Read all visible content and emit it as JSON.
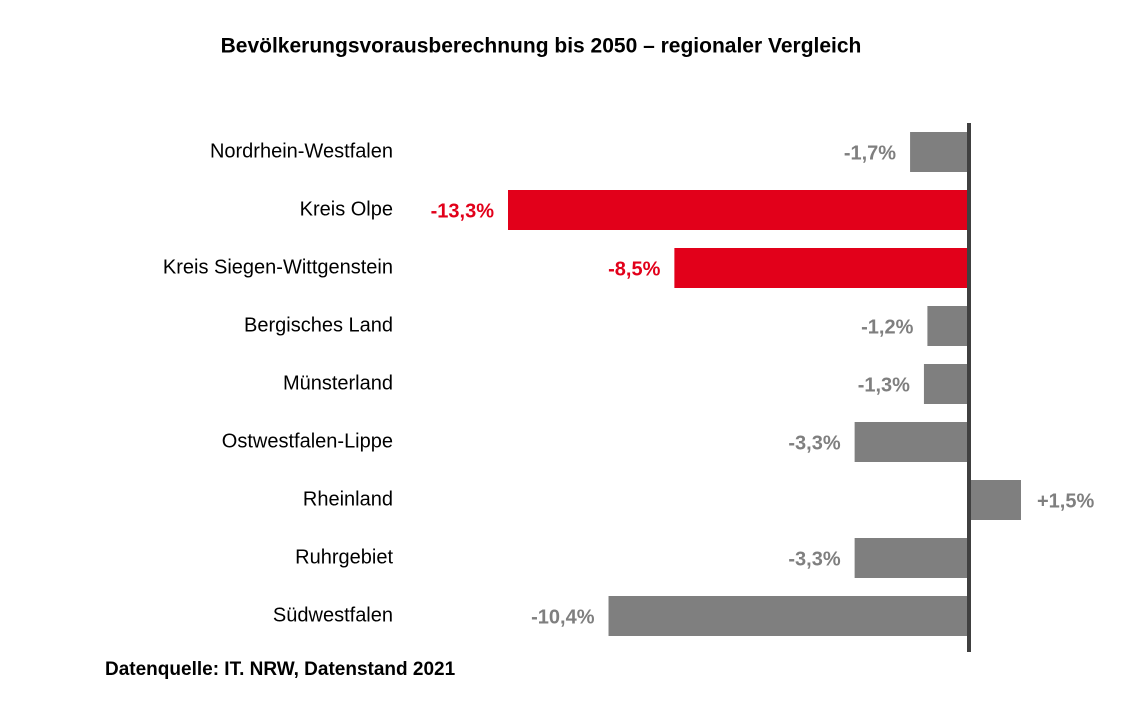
{
  "chart_data": {
    "type": "hbar",
    "title": "Bevölkerungsvorausberechnung bis 2050 – regionaler Vergleich",
    "source": "Datenquelle: IT. NRW, Datenstand 2021",
    "categories": [
      "Nordrhein-Westfalen",
      "Kreis Olpe",
      "Kreis Siegen-Wittgenstein",
      "Bergisches Land",
      "Münsterland",
      "Ostwestfalen-Lippe",
      "Rheinland",
      "Ruhrgebiet",
      "Südwestfalen"
    ],
    "values": [
      -1.7,
      -13.3,
      -8.5,
      -1.2,
      -1.3,
      -3.3,
      1.5,
      -3.3,
      -10.4
    ],
    "value_labels": [
      "-1,7%",
      "-13,3%",
      "-8,5%",
      "-1,2%",
      "-1,3%",
      "-3,3%",
      "+1,5%",
      "-3,3%",
      "-10,4%"
    ],
    "colors": [
      "#7f7f7f",
      "#e2001a",
      "#e2001a",
      "#7f7f7f",
      "#7f7f7f",
      "#7f7f7f",
      "#7f7f7f",
      "#7f7f7f",
      "#7f7f7f"
    ]
  }
}
